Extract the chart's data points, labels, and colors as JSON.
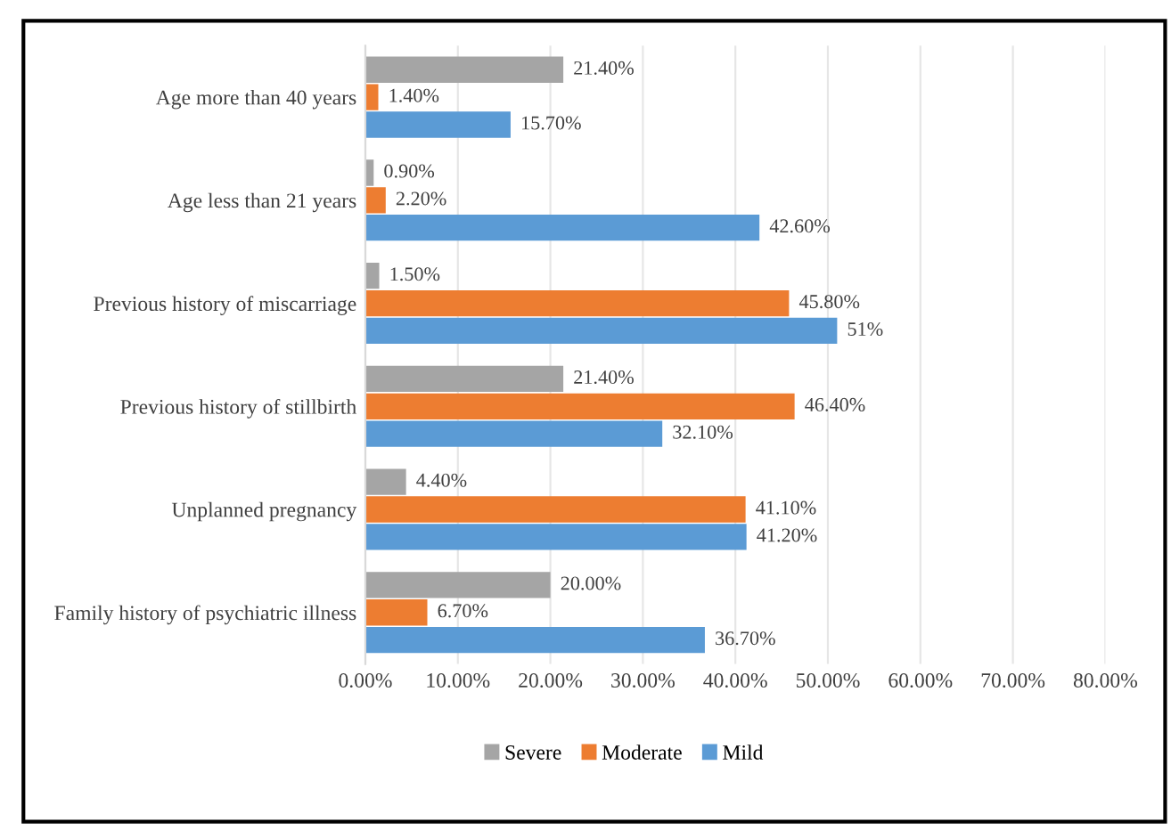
{
  "chart_data": {
    "type": "bar",
    "orientation": "horizontal",
    "categories": [
      "Age more than 40 years",
      "Age less than 21 years",
      "Previous history of miscarriage",
      "Previous history of stillbirth",
      "Unplanned pregnancy",
      "Family history of psychiatric illness"
    ],
    "series": [
      {
        "name": "Severe",
        "color": "#a5a5a5",
        "values": [
          21.4,
          0.9,
          1.5,
          21.4,
          4.4,
          20.0
        ],
        "value_labels": [
          "21.40%",
          "0.90%",
          "1.50%",
          "21.40%",
          "4.40%",
          "20.00%"
        ]
      },
      {
        "name": "Moderate",
        "color": "#ed7d31",
        "values": [
          1.4,
          2.2,
          45.8,
          46.4,
          41.1,
          6.7
        ],
        "value_labels": [
          "1.40%",
          "2.20%",
          "45.80%",
          "46.40%",
          "41.10%",
          "6.70%"
        ]
      },
      {
        "name": "Mild",
        "color": "#5b9bd5",
        "values": [
          15.7,
          42.6,
          51,
          32.1,
          41.2,
          36.7
        ],
        "value_labels": [
          "15.70%",
          "42.60%",
          "51%",
          "32.10%",
          "41.20%",
          "36.70%"
        ]
      }
    ],
    "xlim": [
      0,
      80
    ],
    "xticks": [
      {
        "value": 0,
        "label": "0.00%"
      },
      {
        "value": 10,
        "label": "10.00%"
      },
      {
        "value": 20,
        "label": "20.00%"
      },
      {
        "value": 30,
        "label": "30.00%"
      },
      {
        "value": 40,
        "label": "40.00%"
      },
      {
        "value": 50,
        "label": "50.00%"
      },
      {
        "value": 60,
        "label": "60.00%"
      },
      {
        "value": 70,
        "label": "70.00%"
      },
      {
        "value": 80,
        "label": "80.00%"
      }
    ],
    "grid": "x",
    "legend": "bottom"
  }
}
